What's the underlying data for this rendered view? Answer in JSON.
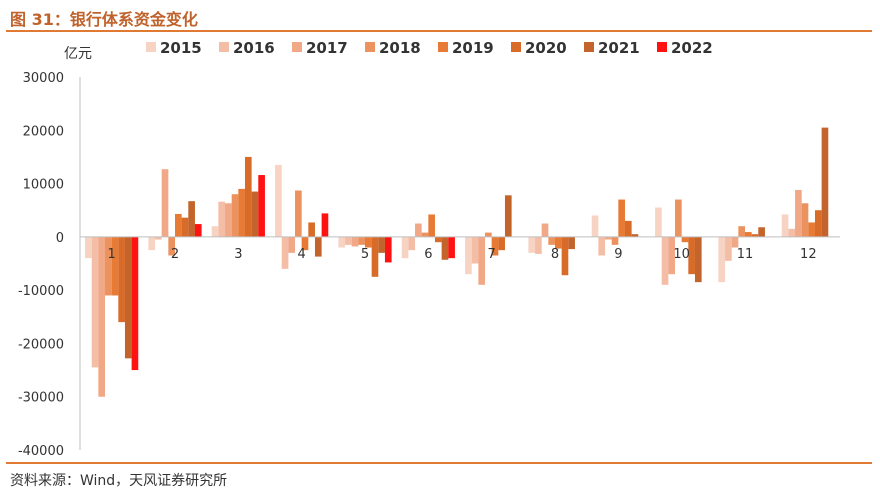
{
  "title": "图 31：银行体系资金变化",
  "source": "资料来源：Wind，天风证券研究所",
  "chart_data": {
    "type": "bar",
    "unit": "亿元",
    "categories": [
      "1",
      "2",
      "3",
      "4",
      "5",
      "6",
      "7",
      "8",
      "9",
      "10",
      "11",
      "12"
    ],
    "ylim": [
      -40000,
      30000
    ],
    "yticks": [
      30000,
      20000,
      10000,
      0,
      -10000,
      -20000,
      -30000,
      -40000
    ],
    "grid": false,
    "legend_position": "top",
    "series": [
      {
        "name": "2015",
        "color": "#f6d3c2",
        "values": [
          -4000,
          -2500,
          2000,
          13500,
          -2000,
          -4000,
          -7000,
          -3000,
          4000,
          5500,
          -8500,
          4200
        ]
      },
      {
        "name": "2016",
        "color": "#f4bda6",
        "values": [
          -24500,
          -500,
          6600,
          -6000,
          -1500,
          -2500,
          -5000,
          -3200,
          -3500,
          -9000,
          -4500,
          1500
        ]
      },
      {
        "name": "2017",
        "color": "#f1a886",
        "values": [
          -30000,
          12700,
          6300,
          -3000,
          -1800,
          2500,
          -9000,
          2500,
          -500,
          -7000,
          -2000,
          8800
        ]
      },
      {
        "name": "2018",
        "color": "#ec925f",
        "values": [
          -11000,
          -3500,
          8000,
          8700,
          -1500,
          800,
          800,
          -1500,
          -1500,
          7000,
          2000,
          6300
        ]
      },
      {
        "name": "2019",
        "color": "#e77a35",
        "values": [
          -11000,
          4300,
          9000,
          -2500,
          -2000,
          4200,
          -3500,
          -2200,
          7000,
          -1000,
          900,
          2700
        ]
      },
      {
        "name": "2020",
        "color": "#d86b28",
        "values": [
          -16000,
          3600,
          15000,
          2700,
          -7500,
          -1000,
          -2500,
          -7200,
          3000,
          -7000,
          500,
          5000
        ]
      },
      {
        "name": "2021",
        "color": "#c2642b",
        "values": [
          -22800,
          6700,
          8500,
          -3700,
          -3000,
          -4300,
          7800,
          -2300,
          500,
          -8500,
          1800,
          20500
        ]
      },
      {
        "name": "2022",
        "color": "#ff1212",
        "values": [
          -25000,
          2400,
          11600,
          4400,
          -4800,
          -4000,
          null,
          null,
          null,
          null,
          null,
          null
        ]
      }
    ]
  }
}
